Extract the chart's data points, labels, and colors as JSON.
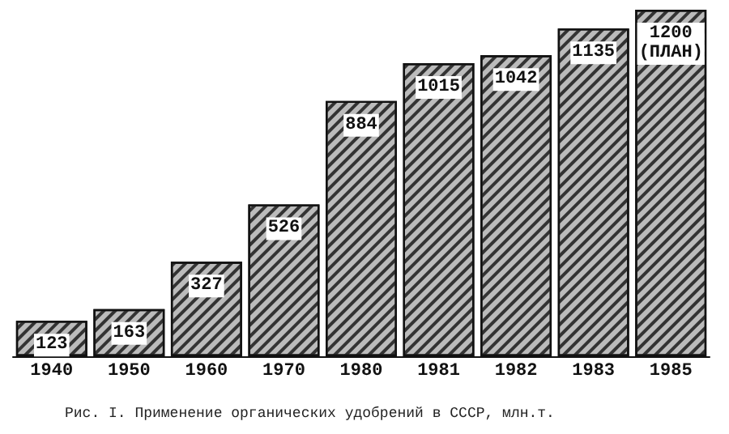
{
  "chart_data": {
    "type": "bar",
    "categories": [
      "1940",
      "1950",
      "1960",
      "1970",
      "1980",
      "1981",
      "1982",
      "1983",
      "1985"
    ],
    "values": [
      123,
      163,
      327,
      526,
      884,
      1015,
      1042,
      1135,
      1200
    ],
    "value_labels": [
      "123",
      "163",
      "327",
      "526",
      "884",
      "1015",
      "1042",
      "1135",
      "1200 (ПЛАН)"
    ],
    "color": "#bbbbbb",
    "annotations": [
      "Рис. I. Применение органических удобрений в СССР, млн.т."
    ]
  }
}
